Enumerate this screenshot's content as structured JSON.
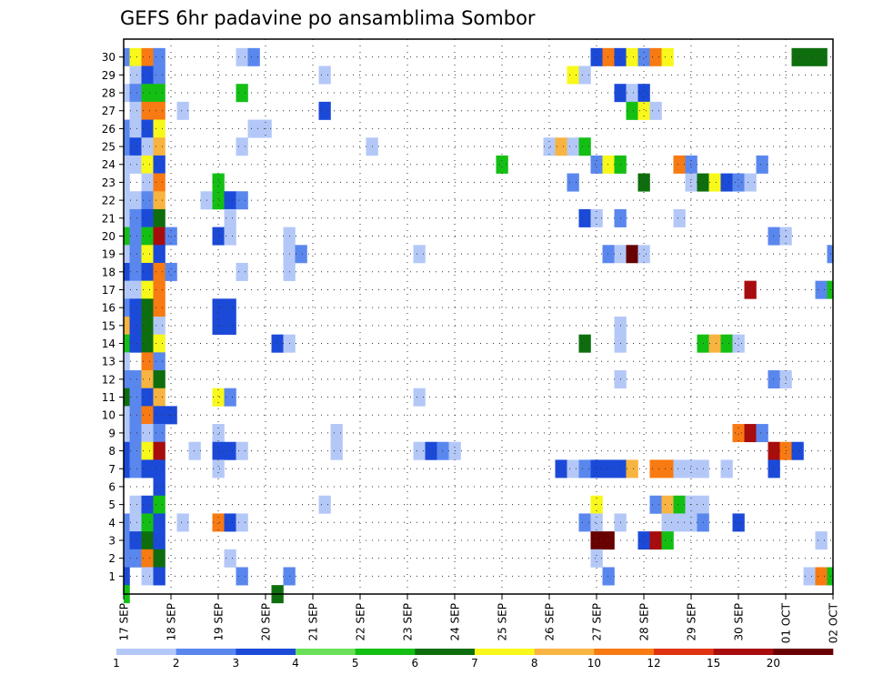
{
  "chart_data": {
    "type": "heatmap",
    "title": "GEFS 6hr padavine po ansamblima Sombor",
    "xlabel": "",
    "ylabel": "",
    "x_tick_labels": [
      "17 SEP",
      "18 SEP",
      "19 SEP",
      "20 SEP",
      "21 SEP",
      "22 SEP",
      "23 SEP",
      "24 SEP",
      "25 SEP",
      "26 SEP",
      "27 SEP",
      "28 SEP",
      "29 SEP",
      "30 SEP",
      "01 OCT",
      "02 OCT"
    ],
    "y_tick_labels": [
      "1",
      "2",
      "3",
      "4",
      "5",
      "6",
      "7",
      "8",
      "9",
      "10",
      "11",
      "12",
      "13",
      "14",
      "15",
      "16",
      "17",
      "18",
      "19",
      "20",
      "21",
      "22",
      "23",
      "24",
      "25",
      "26",
      "27",
      "28",
      "29",
      "30"
    ],
    "time_steps": 61,
    "members": 30,
    "grid": true,
    "colorbar": {
      "levels": [
        1,
        2,
        3,
        4,
        5,
        6,
        7,
        8,
        10,
        12,
        15,
        20
      ],
      "labels": [
        "1",
        "2",
        "3",
        "4",
        "5",
        "6",
        "7",
        "8",
        "10",
        "12",
        "15",
        "20"
      ],
      "colors": [
        "#b4c8f8",
        "#5a87ee",
        "#1b4ad9",
        "#6ae05a",
        "#14bf14",
        "#0e6e0e",
        "#f8f81a",
        "#f8b440",
        "#f87a12",
        "#e03410",
        "#a80c0c",
        "#680000"
      ],
      "placement": "bottom"
    },
    "cells": [
      {
        "m": 30,
        "v": [
          [
            0,
            2
          ],
          [
            1,
            7
          ],
          [
            2,
            10
          ],
          [
            3,
            2
          ],
          [
            10,
            1
          ],
          [
            11,
            2
          ],
          [
            40,
            3
          ],
          [
            41,
            10
          ],
          [
            42,
            3
          ],
          [
            43,
            7
          ],
          [
            44,
            2
          ],
          [
            45,
            10
          ],
          [
            46,
            7
          ],
          [
            57,
            6
          ],
          [
            58,
            6
          ],
          [
            59,
            6
          ]
        ]
      },
      {
        "m": 29,
        "v": [
          [
            1,
            1
          ],
          [
            2,
            3
          ],
          [
            3,
            2
          ],
          [
            17,
            1
          ],
          [
            38,
            7
          ],
          [
            39,
            1
          ]
        ]
      },
      {
        "m": 28,
        "v": [
          [
            0,
            1
          ],
          [
            1,
            2
          ],
          [
            2,
            5
          ],
          [
            3,
            5
          ],
          [
            10,
            5
          ],
          [
            42,
            3
          ],
          [
            43,
            1
          ],
          [
            44,
            3
          ]
        ]
      },
      {
        "m": 27,
        "v": [
          [
            1,
            1
          ],
          [
            2,
            10
          ],
          [
            3,
            10
          ],
          [
            5,
            1
          ],
          [
            17,
            3
          ],
          [
            43,
            5
          ],
          [
            44,
            7
          ],
          [
            45,
            1
          ]
        ]
      },
      {
        "m": 26,
        "v": [
          [
            0,
            2
          ],
          [
            1,
            1
          ],
          [
            2,
            3
          ],
          [
            3,
            7
          ],
          [
            11,
            1
          ],
          [
            12,
            1
          ]
        ]
      },
      {
        "m": 25,
        "v": [
          [
            0,
            2
          ],
          [
            1,
            3
          ],
          [
            2,
            1
          ],
          [
            3,
            8
          ],
          [
            10,
            1
          ],
          [
            21,
            1
          ],
          [
            36,
            1
          ],
          [
            37,
            8
          ],
          [
            38,
            1
          ],
          [
            39,
            5
          ]
        ]
      },
      {
        "m": 24,
        "v": [
          [
            0,
            1
          ],
          [
            1,
            1
          ],
          [
            2,
            7
          ],
          [
            3,
            3
          ],
          [
            32,
            5
          ],
          [
            40,
            2
          ],
          [
            41,
            7
          ],
          [
            42,
            5
          ],
          [
            47,
            10
          ],
          [
            48,
            2
          ],
          [
            54,
            2
          ]
        ]
      },
      {
        "m": 23,
        "v": [
          [
            0,
            1
          ],
          [
            2,
            1
          ],
          [
            3,
            10
          ],
          [
            8,
            5
          ],
          [
            38,
            2
          ],
          [
            44,
            6
          ],
          [
            48,
            1
          ],
          [
            49,
            6
          ],
          [
            50,
            7
          ],
          [
            51,
            3
          ],
          [
            52,
            2
          ],
          [
            53,
            1
          ]
        ]
      },
      {
        "m": 22,
        "v": [
          [
            0,
            1
          ],
          [
            1,
            1
          ],
          [
            2,
            2
          ],
          [
            3,
            8
          ],
          [
            7,
            1
          ],
          [
            8,
            5
          ],
          [
            9,
            3
          ],
          [
            10,
            2
          ]
        ]
      },
      {
        "m": 21,
        "v": [
          [
            0,
            1
          ],
          [
            1,
            2
          ],
          [
            2,
            3
          ],
          [
            3,
            6
          ],
          [
            9,
            1
          ],
          [
            39,
            3
          ],
          [
            40,
            1
          ],
          [
            42,
            2
          ],
          [
            47,
            1
          ]
        ]
      },
      {
        "m": 20,
        "v": [
          [
            0,
            5
          ],
          [
            1,
            2
          ],
          [
            2,
            5
          ],
          [
            3,
            15
          ],
          [
            4,
            2
          ],
          [
            8,
            3
          ],
          [
            9,
            1
          ],
          [
            14,
            1
          ],
          [
            55,
            2
          ],
          [
            56,
            1
          ]
        ]
      },
      {
        "m": 19,
        "v": [
          [
            0,
            1
          ],
          [
            1,
            2
          ],
          [
            2,
            7
          ],
          [
            3,
            3
          ],
          [
            14,
            1
          ],
          [
            15,
            2
          ],
          [
            25,
            1
          ],
          [
            41,
            2
          ],
          [
            42,
            1
          ],
          [
            43,
            20
          ],
          [
            44,
            1
          ],
          [
            60,
            2
          ]
        ]
      },
      {
        "m": 18,
        "v": [
          [
            0,
            3
          ],
          [
            1,
            2
          ],
          [
            2,
            3
          ],
          [
            3,
            10
          ],
          [
            4,
            2
          ],
          [
            10,
            1
          ],
          [
            14,
            1
          ]
        ]
      },
      {
        "m": 17,
        "v": [
          [
            0,
            1
          ],
          [
            1,
            1
          ],
          [
            2,
            7
          ],
          [
            3,
            10
          ],
          [
            53,
            15
          ],
          [
            59,
            2
          ],
          [
            60,
            5
          ]
        ]
      },
      {
        "m": 16,
        "v": [
          [
            0,
            2
          ],
          [
            1,
            3
          ],
          [
            2,
            6
          ],
          [
            3,
            10
          ],
          [
            8,
            3
          ],
          [
            9,
            3
          ]
        ]
      },
      {
        "m": 15,
        "v": [
          [
            0,
            8
          ],
          [
            1,
            3
          ],
          [
            2,
            6
          ],
          [
            3,
            1
          ],
          [
            8,
            3
          ],
          [
            9,
            3
          ],
          [
            42,
            1
          ]
        ]
      },
      {
        "m": 14,
        "v": [
          [
            0,
            5
          ],
          [
            1,
            3
          ],
          [
            2,
            6
          ],
          [
            3,
            7
          ],
          [
            13,
            3
          ],
          [
            14,
            1
          ],
          [
            39,
            6
          ],
          [
            42,
            1
          ],
          [
            49,
            5
          ],
          [
            50,
            8
          ],
          [
            51,
            5
          ],
          [
            52,
            1
          ]
        ]
      },
      {
        "m": 13,
        "v": [
          [
            0,
            1
          ],
          [
            2,
            10
          ],
          [
            3,
            2
          ]
        ]
      },
      {
        "m": 12,
        "v": [
          [
            0,
            2
          ],
          [
            1,
            2
          ],
          [
            2,
            8
          ],
          [
            3,
            6
          ],
          [
            42,
            1
          ],
          [
            55,
            2
          ],
          [
            56,
            1
          ]
        ]
      },
      {
        "m": 11,
        "v": [
          [
            0,
            6
          ],
          [
            1,
            2
          ],
          [
            2,
            3
          ],
          [
            3,
            8
          ],
          [
            8,
            7
          ],
          [
            9,
            2
          ],
          [
            25,
            1
          ]
        ]
      },
      {
        "m": 10,
        "v": [
          [
            0,
            1
          ],
          [
            1,
            2
          ],
          [
            2,
            10
          ],
          [
            3,
            3
          ],
          [
            4,
            3
          ]
        ]
      },
      {
        "m": 9,
        "v": [
          [
            0,
            1
          ],
          [
            1,
            2
          ],
          [
            2,
            1
          ],
          [
            3,
            2
          ],
          [
            8,
            1
          ],
          [
            18,
            1
          ],
          [
            52,
            10
          ],
          [
            53,
            15
          ],
          [
            54,
            2
          ]
        ]
      },
      {
        "m": 8,
        "v": [
          [
            0,
            3
          ],
          [
            1,
            2
          ],
          [
            2,
            7
          ],
          [
            3,
            15
          ],
          [
            6,
            1
          ],
          [
            8,
            3
          ],
          [
            9,
            3
          ],
          [
            10,
            1
          ],
          [
            18,
            1
          ],
          [
            25,
            1
          ],
          [
            26,
            3
          ],
          [
            27,
            2
          ],
          [
            28,
            1
          ],
          [
            55,
            15
          ],
          [
            56,
            10
          ],
          [
            57,
            3
          ]
        ]
      },
      {
        "m": 7,
        "v": [
          [
            0,
            3
          ],
          [
            1,
            2
          ],
          [
            2,
            3
          ],
          [
            3,
            3
          ],
          [
            8,
            1
          ],
          [
            37,
            3
          ],
          [
            38,
            1
          ],
          [
            39,
            2
          ],
          [
            40,
            3
          ],
          [
            41,
            3
          ],
          [
            42,
            3
          ],
          [
            43,
            8
          ],
          [
            45,
            10
          ],
          [
            46,
            10
          ],
          [
            47,
            1
          ],
          [
            48,
            1
          ],
          [
            49,
            1
          ],
          [
            51,
            1
          ],
          [
            55,
            3
          ]
        ]
      },
      {
        "m": 6,
        "v": [
          [
            3,
            3
          ]
        ]
      },
      {
        "m": 5,
        "v": [
          [
            1,
            1
          ],
          [
            2,
            3
          ],
          [
            3,
            5
          ],
          [
            17,
            1
          ],
          [
            40,
            7
          ],
          [
            45,
            2
          ],
          [
            46,
            8
          ],
          [
            47,
            5
          ],
          [
            48,
            1
          ],
          [
            49,
            1
          ]
        ]
      },
      {
        "m": 4,
        "v": [
          [
            0,
            2
          ],
          [
            1,
            1
          ],
          [
            2,
            5
          ],
          [
            3,
            3
          ],
          [
            5,
            1
          ],
          [
            8,
            10
          ],
          [
            9,
            3
          ],
          [
            10,
            1
          ],
          [
            39,
            2
          ],
          [
            40,
            1
          ],
          [
            42,
            1
          ],
          [
            46,
            1
          ],
          [
            47,
            1
          ],
          [
            48,
            1
          ],
          [
            49,
            2
          ],
          [
            52,
            3
          ]
        ]
      },
      {
        "m": 3,
        "v": [
          [
            0,
            2
          ],
          [
            1,
            3
          ],
          [
            2,
            6
          ],
          [
            3,
            3
          ],
          [
            40,
            20
          ],
          [
            41,
            20
          ],
          [
            44,
            3
          ],
          [
            45,
            15
          ],
          [
            46,
            5
          ],
          [
            59,
            1
          ]
        ]
      },
      {
        "m": 2,
        "v": [
          [
            0,
            2
          ],
          [
            1,
            2
          ],
          [
            2,
            10
          ],
          [
            3,
            6
          ],
          [
            9,
            1
          ],
          [
            40,
            1
          ]
        ]
      },
      {
        "m": 1,
        "v": [
          [
            0,
            3
          ],
          [
            2,
            1
          ],
          [
            3,
            3
          ],
          [
            10,
            2
          ],
          [
            14,
            2
          ],
          [
            41,
            2
          ],
          [
            58,
            1
          ],
          [
            59,
            10
          ],
          [
            60,
            5
          ]
        ]
      },
      {
        "m": 0,
        "v": [
          [
            0,
            5
          ],
          [
            13,
            6
          ]
        ]
      }
    ]
  }
}
